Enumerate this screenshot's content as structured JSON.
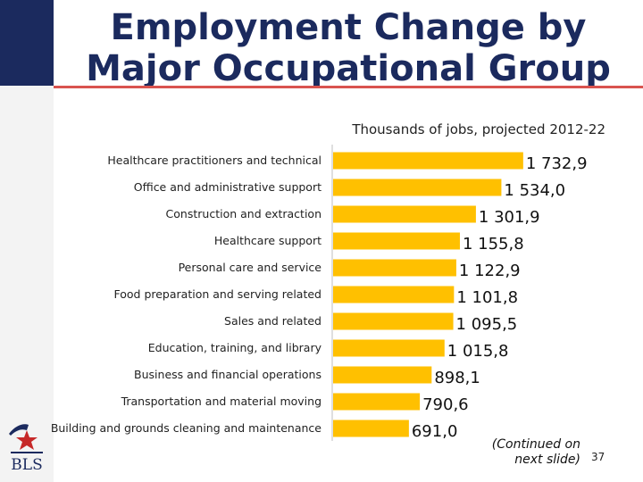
{
  "title": "Employment Change by Major Occupational Group",
  "subtitle": "Thousands of jobs, projected 2012-22",
  "footer": {
    "continued": "(Continued on next slide)",
    "page_number": "37",
    "logo_text": "BLS"
  },
  "colors": {
    "bar": "#ffc000",
    "title": "#1b2a5e",
    "accent_rule": "#d9534f"
  },
  "chart_data": {
    "type": "bar",
    "orientation": "horizontal",
    "title": "Thousands of jobs, projected 2012-22",
    "categories": [
      "Healthcare practitioners and technical",
      "Office and administrative support",
      "Construction and extraction",
      "Healthcare support",
      "Personal care and service",
      "Food preparation and serving related",
      "Sales and related",
      "Education, training, and library",
      "Business and financial operations",
      "Transportation and material moving",
      "Building and grounds cleaning and maintenance"
    ],
    "values": [
      1732.9,
      1534.0,
      1301.9,
      1155.8,
      1122.9,
      1101.8,
      1095.5,
      1015.8,
      898.1,
      790.6,
      691.0
    ],
    "value_labels": [
      "1 732,9",
      "1 534,0",
      "1 301,9",
      "1 155,8",
      "1 122,9",
      "1 101,8",
      "1 095,5",
      "1 015,8",
      "898,1",
      "790,6",
      "691,0"
    ],
    "xlim": [
      0,
      1900
    ],
    "grid": false,
    "legend": "none"
  }
}
